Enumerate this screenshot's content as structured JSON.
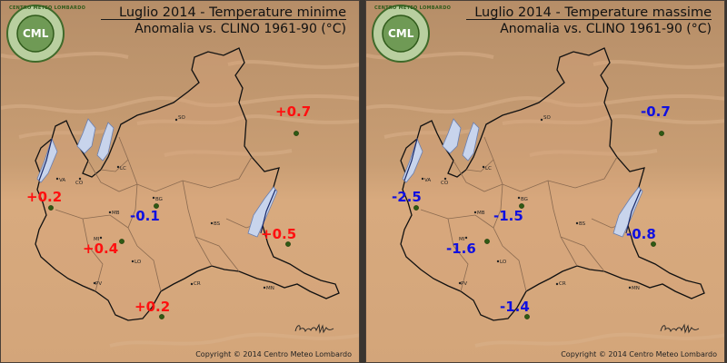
{
  "panels": [
    {
      "title": "Luglio 2014 - Temperature minime",
      "subtitle": "Anomalia vs. CLINO 1961-90 (°C)",
      "anomalies": [
        "+0.7",
        "+0.2",
        "-0.1",
        "+0.4",
        "+0.5",
        "+0.2"
      ]
    },
    {
      "title": "Luglio 2014 - Temperature massime",
      "subtitle": "Anomalia vs. CLINO 1961-90 (°C)",
      "anomalies": [
        "-0.7",
        "-2.5",
        "-1.5",
        "-1.6",
        "-0.8",
        "-1.4"
      ]
    }
  ],
  "cities": [
    "SO",
    "VA",
    "CO",
    "LC",
    "BG",
    "MB",
    "MI",
    "BS",
    "LO",
    "PV",
    "CR",
    "MN"
  ],
  "logo": {
    "top_text": "CENTRO METEO LOMBARDO",
    "center_text": "CML"
  },
  "copyright": "Copyright © 2014 Centro Meteo Lombardo",
  "colors": {
    "positive": "#ff1010",
    "negative": "#1010e0",
    "lowland": "#d7a87c",
    "mountain": "#a88460",
    "lake": "#c8d4ec"
  }
}
